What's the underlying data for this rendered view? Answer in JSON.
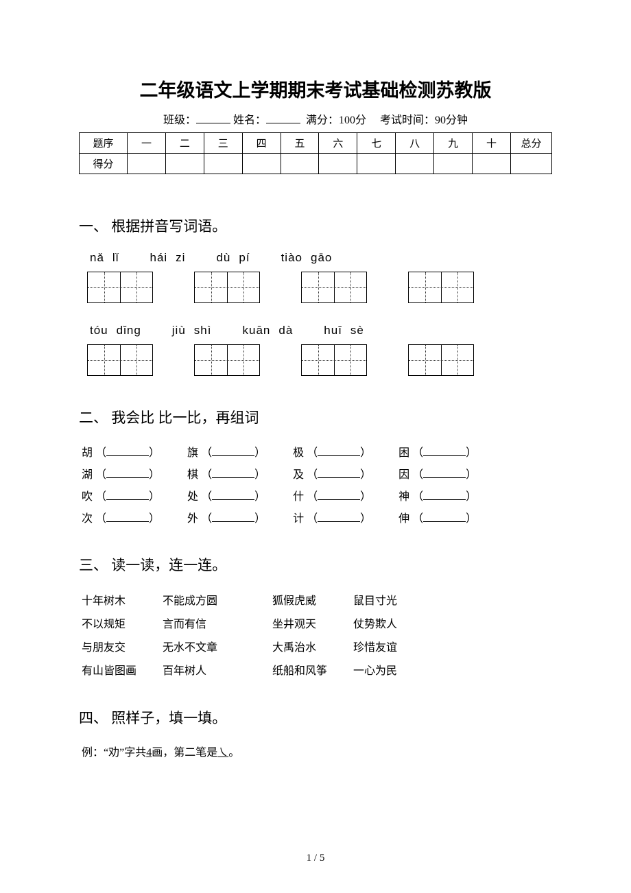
{
  "title": "二年级语文上学期期末考试基础检测苏教版",
  "sub": {
    "class": "班级：",
    "name": "姓名：",
    "full": "满分：100分",
    "time": "考试时间：90分钟"
  },
  "score_table": {
    "headers": [
      "题序",
      "一",
      "二",
      "三",
      "四",
      "五",
      "六",
      "七",
      "八",
      "九",
      "十",
      "总分"
    ],
    "row2_label": "得分"
  },
  "sec1": {
    "heading": "一、 根据拼音写词语。",
    "row1": [
      [
        "nǎ",
        "lǐ"
      ],
      [
        "hái",
        "zi"
      ],
      [
        "dù",
        "pí"
      ],
      [
        "tiào",
        "gāo"
      ]
    ],
    "row2": [
      [
        "tóu",
        "dǐng"
      ],
      [
        "jiù",
        "shì"
      ],
      [
        "kuān",
        "dà"
      ],
      [
        "huī",
        "sè"
      ]
    ]
  },
  "sec2": {
    "heading": "二、 我会比 比一比，再组词",
    "rows": [
      [
        "胡",
        "旗",
        "极",
        "困"
      ],
      [
        "湖",
        "棋",
        "及",
        "因"
      ],
      [
        "吹",
        "处",
        "什",
        "神"
      ],
      [
        "次",
        "外",
        "计",
        "伸"
      ]
    ]
  },
  "sec3": {
    "heading": "三、 读一读，连一连。",
    "col1": [
      "十年树木",
      "不以规矩",
      "与朋友交",
      "有山皆图画"
    ],
    "col2": [
      "不能成方圆",
      "言而有信",
      "无水不文章",
      "百年树人"
    ],
    "col3": [
      "狐假虎威",
      "坐井观天",
      "大禹治水",
      "纸船和风筝"
    ],
    "col4": [
      "鼠目寸光",
      "仗势欺人",
      "珍惜友谊",
      "一心为民"
    ]
  },
  "sec4": {
    "heading": "四、 照样子，填一填。",
    "example_pre": "例：“劝”字共",
    "example_strokes": "4",
    "example_mid": "画，第二笔是",
    "example_stroke": "㇏",
    "example_end": "。"
  },
  "footer": "1 / 5",
  "colors": {
    "bg": "#ffffff",
    "text": "#000000",
    "border": "#000000"
  }
}
